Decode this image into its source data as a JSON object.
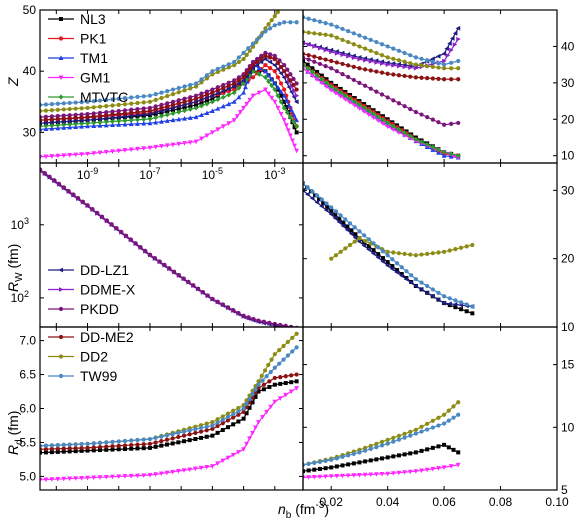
{
  "figure": {
    "xlabel_left": "n_b (fm^-3)",
    "x_label_main": "n",
    "x_label_sub": "b",
    "x_label_unit": " (fm",
    "x_label_exp": "-3",
    "x_label_close": ")"
  },
  "colors": {
    "NL3": "#000000",
    "PK1": "#e8151b",
    "TM1": "#1f3fe8",
    "GM1": "#ff27ff",
    "MTVTC": "#2d9a2d",
    "DD-LZ1": "#1c1c82",
    "DDME-X": "#8a23c8",
    "PKDD": "#7b157b",
    "DD-ME2": "#8b1212",
    "DD2": "#8c8c14",
    "TW99": "#4a88c4"
  },
  "chart_data": [
    {
      "type": "line",
      "panel": "Z vs n_b (log)",
      "ylabel": "Z",
      "xscale": "log",
      "xlim": [
        3e-11,
        0.008
      ],
      "ylim": [
        25,
        50
      ],
      "x_ticks": [
        "10^-9",
        "10^-7",
        "10^-5",
        "10^-3"
      ],
      "y_ticks": [
        "30",
        "40",
        "50"
      ],
      "x": [
        3e-11,
        1e-09,
        1e-07,
        3e-06,
        1e-05,
        5e-05,
        0.0001,
        0.0002,
        0.0005,
        0.001,
        0.002,
        0.005
      ],
      "series": [
        {
          "name": "NL3",
          "values": [
            31.5,
            32.0,
            32.8,
            34.5,
            35.5,
            37.5,
            38,
            40,
            40,
            38,
            35,
            30
          ]
        },
        {
          "name": "PK1",
          "values": [
            32.0,
            32.4,
            33.2,
            35.0,
            36.0,
            37.0,
            38,
            39,
            41,
            40,
            37,
            31
          ]
        },
        {
          "name": "TM1",
          "values": [
            30.5,
            31.0,
            31.5,
            32.5,
            33.5,
            35.0,
            36.5,
            41,
            40,
            38,
            36,
            32
          ]
        },
        {
          "name": "GM1",
          "values": [
            26.0,
            26.5,
            27.5,
            28.5,
            30.0,
            32.0,
            34,
            36,
            37,
            35,
            32,
            27
          ]
        },
        {
          "name": "MTVTC",
          "values": [
            31.0,
            31.5,
            32.2,
            34.0,
            35.0,
            36.5,
            38,
            40,
            39,
            37,
            34,
            31
          ]
        },
        {
          "name": "DD-LZ1",
          "values": [
            31.5,
            32.0,
            33.0,
            35.0,
            36.0,
            37.5,
            38.5,
            40.5,
            42,
            41,
            39,
            35
          ]
        },
        {
          "name": "DDME-X",
          "values": [
            32.0,
            32.5,
            33.5,
            35.5,
            36.5,
            38.0,
            39,
            41,
            42.5,
            42,
            40,
            36
          ]
        },
        {
          "name": "PKDD",
          "values": [
            32.5,
            33.0,
            34.0,
            36.0,
            37.0,
            38.5,
            39.5,
            41.5,
            43,
            42.5,
            41,
            38
          ]
        },
        {
          "name": "DD-ME2",
          "values": [
            32.0,
            32.5,
            33.5,
            35.5,
            36.5,
            38.0,
            39,
            41,
            42.5,
            42,
            40,
            37
          ]
        },
        {
          "name": "DD2",
          "values": [
            33.5,
            34.0,
            35.0,
            37.5,
            39.5,
            41.0,
            42,
            44,
            47,
            49,
            51,
            53
          ]
        },
        {
          "name": "TW99",
          "values": [
            34.5,
            35.0,
            36.0,
            38.0,
            40.0,
            41.5,
            43,
            44.5,
            46.5,
            47.5,
            48,
            48
          ]
        }
      ]
    },
    {
      "type": "line",
      "panel": "Z vs n_b (linear)",
      "ylabel": "Z",
      "xlim": [
        0.01,
        0.1
      ],
      "ylim": [
        8,
        50
      ],
      "y_ticks": [
        "10",
        "20",
        "30",
        "40"
      ],
      "x": [
        0.01,
        0.02,
        0.03,
        0.04,
        0.05,
        0.06,
        0.065
      ],
      "series": [
        {
          "name": "NL3",
          "values": [
            36,
            30,
            25,
            20,
            15,
            11,
            10
          ]
        },
        {
          "name": "PK1",
          "values": [
            35,
            29.5,
            24.5,
            19.5,
            14.5,
            10.5,
            10
          ]
        },
        {
          "name": "TM1",
          "values": [
            34,
            28.5,
            23.5,
            18.5,
            14,
            10,
            9.5
          ]
        },
        {
          "name": "GM1",
          "values": [
            34,
            28,
            23,
            18,
            14,
            11,
            9.5
          ]
        },
        {
          "name": "MTVTC",
          "values": [
            35,
            29,
            24,
            19,
            14.5,
            11,
            10
          ]
        },
        {
          "name": "DD-LZ1",
          "values": [
            41,
            39,
            37,
            35.5,
            34.5,
            38,
            45
          ]
        },
        {
          "name": "DDME-X",
          "values": [
            41,
            38.5,
            36.5,
            35,
            34,
            36,
            42
          ]
        },
        {
          "name": "PKDD",
          "values": [
            37,
            34,
            30,
            26,
            22,
            18.5,
            19
          ]
        },
        {
          "name": "DD-ME2",
          "values": [
            38,
            36,
            34,
            32.5,
            31.5,
            31,
            31
          ]
        },
        {
          "name": "DD2",
          "values": [
            44,
            43,
            40,
            37,
            35,
            34,
            34
          ]
        },
        {
          "name": "TW99",
          "values": [
            48,
            46,
            43,
            40,
            37,
            35,
            36
          ]
        }
      ]
    },
    {
      "type": "line",
      "panel": "R_W vs n_b (log)",
      "ylabel": "R_W (fm)",
      "xscale": "log",
      "yscale": "log",
      "xlim": [
        3e-11,
        0.008
      ],
      "ylim": [
        40,
        7000
      ],
      "y_ticks": [
        "10^2",
        "10^3"
      ],
      "x": [
        3e-11,
        1e-09,
        1e-07,
        1e-05,
        0.0001,
        0.0003,
        0.001,
        0.005
      ],
      "series": [
        {
          "name": "DD-LZ1",
          "values": [
            5500,
            1800,
            380,
            95,
            55,
            47,
            42,
            37
          ]
        },
        {
          "name": "DDME-X",
          "values": [
            5600,
            1820,
            385,
            96,
            56,
            48,
            43,
            38
          ]
        },
        {
          "name": "PKDD",
          "values": [
            5700,
            1850,
            390,
            97,
            57,
            49,
            44,
            39
          ]
        }
      ]
    },
    {
      "type": "line",
      "panel": "R_W vs n_b (linear)",
      "ylabel": "R_W (fm)",
      "xlim": [
        0.01,
        0.1
      ],
      "ylim": [
        10,
        34
      ],
      "y_ticks": [
        "10",
        "20",
        "30"
      ],
      "x": [
        0.01,
        0.02,
        0.03,
        0.04,
        0.05,
        0.06,
        0.07
      ],
      "series": [
        {
          "name": "NL3",
          "values": [
            31,
            27,
            23,
            19.5,
            16,
            13.5,
            12
          ]
        },
        {
          "name": "DD-LZ1",
          "values": [
            30,
            26.5,
            22.5,
            19,
            16,
            13.5,
            13
          ]
        },
        {
          "name": "DD2",
          "values": [
            null,
            20,
            23,
            21,
            20.5,
            21,
            22
          ]
        },
        {
          "name": "TW99",
          "values": [
            31,
            27.5,
            24,
            20.5,
            17,
            14.5,
            13
          ]
        }
      ]
    },
    {
      "type": "line",
      "panel": "R_d vs n_b (log)",
      "ylabel": "R_d (fm)",
      "xscale": "log",
      "xlim": [
        3e-11,
        0.008
      ],
      "ylim": [
        4.8,
        7.2
      ],
      "y_ticks": [
        "5.0",
        "5.5",
        "6.0",
        "6.5",
        "7.0"
      ],
      "x": [
        3e-11,
        1e-09,
        1e-07,
        1e-05,
        0.0001,
        0.0003,
        0.001,
        0.005
      ],
      "series": [
        {
          "name": "NL3",
          "values": [
            5.35,
            5.38,
            5.42,
            5.6,
            5.85,
            6.25,
            6.35,
            6.4
          ]
        },
        {
          "name": "GM1",
          "values": [
            4.95,
            4.98,
            5.02,
            5.15,
            5.4,
            5.8,
            6.1,
            6.3
          ]
        },
        {
          "name": "DD-ME2",
          "values": [
            5.4,
            5.42,
            5.48,
            5.7,
            5.95,
            6.3,
            6.45,
            6.5
          ]
        },
        {
          "name": "DD2",
          "values": [
            5.45,
            5.48,
            5.55,
            5.8,
            6.05,
            6.4,
            6.8,
            7.1
          ]
        },
        {
          "name": "TW99",
          "values": [
            5.45,
            5.48,
            5.55,
            5.75,
            6.0,
            6.35,
            6.6,
            6.9
          ]
        }
      ]
    },
    {
      "type": "line",
      "panel": "R_d vs n_b (linear)",
      "ylabel": "R_d (fm)",
      "xlim": [
        0.01,
        0.1
      ],
      "ylim": [
        5,
        18
      ],
      "x_ticks": [
        "0.02",
        "0.04",
        "0.06",
        "0.08",
        "0.10"
      ],
      "y_ticks": [
        "5",
        "10",
        "15"
      ],
      "x": [
        0.01,
        0.02,
        0.03,
        0.04,
        0.05,
        0.06,
        0.065
      ],
      "series": [
        {
          "name": "NL3",
          "values": [
            6.5,
            6.8,
            7.2,
            7.6,
            8.0,
            8.6,
            8
          ]
        },
        {
          "name": "GM1",
          "values": [
            6.0,
            6.1,
            6.2,
            6.3,
            6.5,
            6.8,
            7
          ]
        },
        {
          "name": "DD2",
          "values": [
            7.0,
            7.5,
            8.2,
            9.0,
            9.8,
            11.0,
            12
          ]
        },
        {
          "name": "TW99",
          "values": [
            7.0,
            7.4,
            8.0,
            8.7,
            9.5,
            10.3,
            11
          ]
        }
      ]
    }
  ],
  "legends": {
    "top": [
      "NL3",
      "PK1",
      "TM1",
      "GM1",
      "MTVTC"
    ],
    "middle": [
      "DD-LZ1",
      "DDME-X",
      "PKDD"
    ],
    "bottom": [
      "DD-ME2",
      "DD2",
      "TW99"
    ]
  },
  "labels": {
    "z": "Z",
    "rw_main": "R",
    "rw_sub": "W",
    "rw_unit": " (fm)",
    "rd_main": "R",
    "rd_sub": "d",
    "rd_unit": " (fm)"
  }
}
